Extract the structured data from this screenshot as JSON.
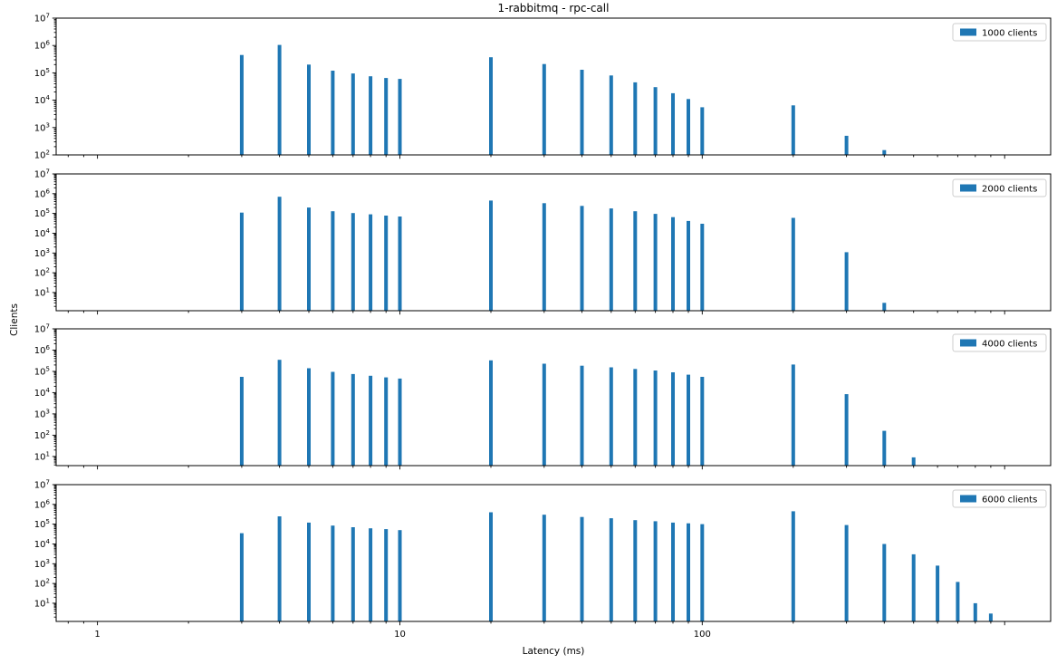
{
  "figure": {
    "bar_color": "#1f77b4",
    "spine_color": "#000000",
    "legend_border_color": "#cccccc",
    "background_color": "#ffffff"
  },
  "chart_data": {
    "type": "bar",
    "title": "1-rabbitmq - rpc-call",
    "xlabel": "Latency (ms)",
    "ylabel": "Clients",
    "xscale": "log",
    "yscale": "log",
    "grid": false,
    "xlim": [
      0.73,
      1420
    ],
    "categories": [
      3,
      4,
      5,
      6,
      7,
      8,
      9,
      10,
      20,
      30,
      40,
      50,
      60,
      70,
      80,
      90,
      100,
      200,
      300,
      400,
      500,
      600,
      700,
      800,
      900
    ],
    "xtick_labels": [
      {
        "value": 1,
        "label": "1"
      },
      {
        "value": 10,
        "label": "10"
      },
      {
        "value": 100,
        "label": "100"
      }
    ],
    "subplots": [
      {
        "legend": "1000 clients",
        "legend_position": "upper right",
        "ylim": [
          100,
          10000000
        ],
        "ytick_exponents": [
          7,
          6,
          5,
          4,
          3,
          2
        ],
        "values": [
          450000,
          1050000,
          200000,
          120000,
          95000,
          75000,
          65000,
          60000,
          370000,
          210000,
          130000,
          80000,
          45000,
          30000,
          18000,
          11000,
          5500,
          6500,
          500,
          150,
          0,
          0,
          0,
          0,
          0
        ]
      },
      {
        "legend": "2000 clients",
        "legend_position": "upper right",
        "ylim": [
          1.2,
          10000000
        ],
        "ytick_exponents": [
          7,
          6,
          5,
          4,
          3,
          2,
          1
        ],
        "values": [
          110000,
          700000,
          200000,
          130000,
          105000,
          90000,
          78000,
          70000,
          450000,
          330000,
          240000,
          180000,
          130000,
          95000,
          65000,
          42000,
          30000,
          60000,
          1100,
          3,
          0,
          0,
          0,
          0,
          0
        ]
      },
      {
        "legend": "4000 clients",
        "legend_position": "upper right",
        "ylim": [
          3.7,
          10000000
        ],
        "ytick_exponents": [
          7,
          6,
          5,
          4,
          3,
          2,
          1
        ],
        "values": [
          55000,
          350000,
          140000,
          95000,
          75000,
          62000,
          52000,
          46000,
          330000,
          230000,
          185000,
          155000,
          130000,
          110000,
          90000,
          70000,
          55000,
          210000,
          8500,
          160,
          9,
          0,
          0,
          0,
          0
        ]
      },
      {
        "legend": "6000 clients",
        "legend_position": "upper right",
        "ylim": [
          1.2,
          10000000
        ],
        "ytick_exponents": [
          7,
          6,
          5,
          4,
          3,
          2,
          1
        ],
        "values": [
          35000,
          250000,
          120000,
          85000,
          70000,
          62000,
          56000,
          50000,
          400000,
          300000,
          230000,
          200000,
          160000,
          140000,
          120000,
          110000,
          100000,
          450000,
          90000,
          10000,
          3000,
          800,
          120,
          10,
          3
        ]
      }
    ]
  }
}
